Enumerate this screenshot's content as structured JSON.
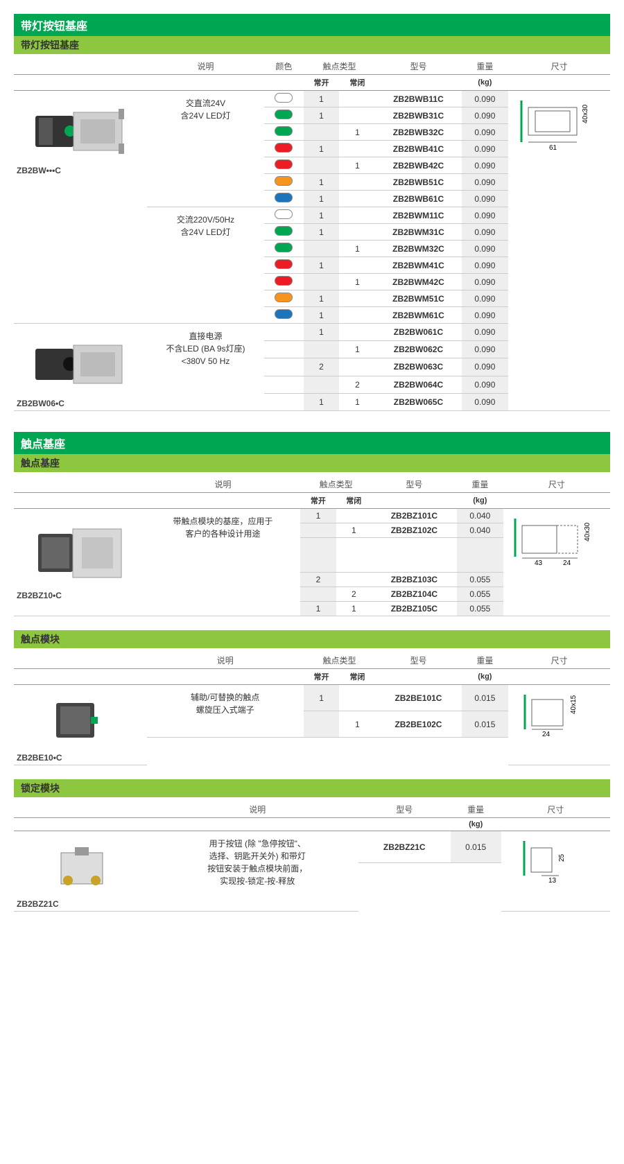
{
  "colors": {
    "title_bg": "#00a651",
    "sub_bg": "#8dc63f",
    "white": "#ffffff",
    "green": "#00a651",
    "red": "#ed1c24",
    "orange": "#f7941e",
    "blue": "#1c75bc",
    "grey_cell": "#eeeeee",
    "border": "#cccccc"
  },
  "headers": {
    "desc": "说明",
    "color": "颜色",
    "contact_type": "触点类型",
    "model": "型号",
    "weight": "重量",
    "dim": "尺寸",
    "no": "常开",
    "nc": "常闭",
    "kg": "(kg)"
  },
  "section1": {
    "title": "带灯按钮基座",
    "subtitle": "带灯按钮基座",
    "img1_caption": "ZB2BW•••C",
    "img2_caption": "ZB2BW06•C",
    "groups": [
      {
        "desc_lines": [
          "交直流24V",
          "含24V LED灯"
        ],
        "rows": [
          {
            "color": "white",
            "no": "1",
            "nc": "",
            "model": "ZB2BWB11C",
            "weight": "0.090"
          },
          {
            "color": "green",
            "no": "1",
            "nc": "",
            "model": "ZB2BWB31C",
            "weight": "0.090"
          },
          {
            "color": "green",
            "no": "",
            "nc": "1",
            "model": "ZB2BWB32C",
            "weight": "0.090"
          },
          {
            "color": "red",
            "no": "1",
            "nc": "",
            "model": "ZB2BWB41C",
            "weight": "0.090"
          },
          {
            "color": "red",
            "no": "",
            "nc": "1",
            "model": "ZB2BWB42C",
            "weight": "0.090"
          },
          {
            "color": "orange",
            "no": "1",
            "nc": "",
            "model": "ZB2BWB51C",
            "weight": "0.090"
          },
          {
            "color": "blue",
            "no": "1",
            "nc": "",
            "model": "ZB2BWB61C",
            "weight": "0.090"
          }
        ]
      },
      {
        "desc_lines": [
          "交流220V/50Hz",
          "含24V LED灯"
        ],
        "rows": [
          {
            "color": "white",
            "no": "1",
            "nc": "",
            "model": "ZB2BWM11C",
            "weight": "0.090"
          },
          {
            "color": "green",
            "no": "1",
            "nc": "",
            "model": "ZB2BWM31C",
            "weight": "0.090"
          },
          {
            "color": "green",
            "no": "",
            "nc": "1",
            "model": "ZB2BWM32C",
            "weight": "0.090"
          },
          {
            "color": "red",
            "no": "1",
            "nc": "",
            "model": "ZB2BWM41C",
            "weight": "0.090"
          },
          {
            "color": "red",
            "no": "",
            "nc": "1",
            "model": "ZB2BWM42C",
            "weight": "0.090"
          },
          {
            "color": "orange",
            "no": "1",
            "nc": "",
            "model": "ZB2BWM51C",
            "weight": "0.090"
          },
          {
            "color": "blue",
            "no": "1",
            "nc": "",
            "model": "ZB2BWM61C",
            "weight": "0.090"
          }
        ]
      },
      {
        "desc_lines": [
          "直接电源",
          "不含LED (BA 9s灯座)",
          "<380V 50 Hz"
        ],
        "rows": [
          {
            "color": "",
            "no": "1",
            "nc": "",
            "model": "ZB2BW061C",
            "weight": "0.090"
          },
          {
            "color": "",
            "no": "",
            "nc": "1",
            "model": "ZB2BW062C",
            "weight": "0.090"
          },
          {
            "color": "",
            "no": "2",
            "nc": "",
            "model": "ZB2BW063C",
            "weight": "0.090"
          },
          {
            "color": "",
            "no": "",
            "nc": "2",
            "model": "ZB2BW064C",
            "weight": "0.090"
          },
          {
            "color": "",
            "no": "1",
            "nc": "1",
            "model": "ZB2BW065C",
            "weight": "0.090"
          }
        ]
      }
    ],
    "dim": {
      "w": "61",
      "h": "40x30"
    }
  },
  "section2": {
    "title": "触点基座",
    "subtitle": "触点基座",
    "img_caption": "ZB2BZ10•C",
    "desc_lines": [
      "带触点模块的基座，应用于",
      "客户的各种设计用途"
    ],
    "rows1": [
      {
        "no": "1",
        "nc": "",
        "model": "ZB2BZ101C",
        "weight": "0.040"
      },
      {
        "no": "",
        "nc": "1",
        "model": "ZB2BZ102C",
        "weight": "0.040"
      }
    ],
    "rows2": [
      {
        "no": "2",
        "nc": "",
        "model": "ZB2BZ103C",
        "weight": "0.055"
      },
      {
        "no": "",
        "nc": "2",
        "model": "ZB2BZ104C",
        "weight": "0.055"
      },
      {
        "no": "1",
        "nc": "1",
        "model": "ZB2BZ105C",
        "weight": "0.055"
      }
    ],
    "dim": {
      "w1": "43",
      "w2": "24",
      "h": "40x30"
    }
  },
  "section3": {
    "subtitle": "触点模块",
    "img_caption": "ZB2BE10•C",
    "desc_lines": [
      "辅助/可替换的触点",
      "螺旋压入式端子"
    ],
    "rows": [
      {
        "no": "1",
        "nc": "",
        "model": "ZB2BE101C",
        "weight": "0.015"
      },
      {
        "no": "",
        "nc": "1",
        "model": "ZB2BE102C",
        "weight": "0.015"
      }
    ],
    "dim": {
      "w": "24",
      "h": "40x15"
    }
  },
  "section4": {
    "subtitle": "锁定模块",
    "img_caption": "ZB2BZ21C",
    "desc_lines": [
      "用于按钮 (除 \"急停按钮\"、",
      "选择、钥匙开关外) 和带灯",
      "按钮安装于触点模块前面，",
      "实现按-锁定-按-释放"
    ],
    "rows": [
      {
        "model": "ZB2BZ21C",
        "weight": "0.015"
      }
    ],
    "dim": {
      "w": "13",
      "h": "25"
    }
  }
}
